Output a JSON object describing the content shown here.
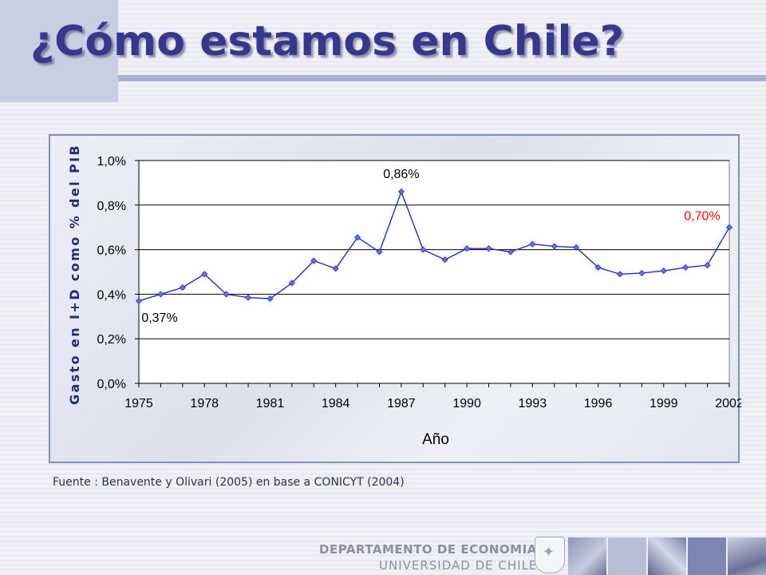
{
  "slide": {
    "title": "¿Cómo estamos en Chile?",
    "source": "Fuente : Benavente y Olivari (2005) en base a CONICYT (2004)"
  },
  "footer": {
    "department": "DEPARTAMENTO DE ECONOMIA",
    "university": "UNIVERSIDAD DE CHILE"
  },
  "colors": {
    "title": "#36378f",
    "line": "#1d2cc8",
    "marker": "#5a78ff",
    "highlight_label": "#ff0000",
    "axis_title": "#1f2a80"
  },
  "chart_data": {
    "type": "line",
    "title": "",
    "xlabel": "Año",
    "ylabel": "Gasto en I+D como % del PIB",
    "x": [
      1975,
      1976,
      1977,
      1978,
      1979,
      1980,
      1981,
      1982,
      1983,
      1984,
      1985,
      1986,
      1987,
      1988,
      1989,
      1990,
      1991,
      1992,
      1993,
      1994,
      1995,
      1996,
      1997,
      1998,
      1999,
      2000,
      2001,
      2002
    ],
    "series": [
      {
        "values": [
          0.37,
          0.4,
          0.43,
          0.49,
          0.4,
          0.385,
          0.38,
          0.45,
          0.55,
          0.515,
          0.655,
          0.59,
          0.86,
          0.6,
          0.555,
          0.605,
          0.605,
          0.59,
          0.625,
          0.615,
          0.61,
          0.52,
          0.49,
          0.495,
          0.505,
          0.52,
          0.53,
          0.7
        ]
      }
    ],
    "xlim": [
      1975,
      2002
    ],
    "ylim": [
      0,
      1.0
    ],
    "x_ticks": [
      "1975",
      "1978",
      "1981",
      "1984",
      "1987",
      "1990",
      "1993",
      "1996",
      "1999",
      "2002"
    ],
    "y_ticks": [
      "0,0%",
      "0,2%",
      "0,4%",
      "0,6%",
      "0,8%",
      "1,0%"
    ],
    "annotations": [
      {
        "text": "0,37%",
        "x": 1975,
        "y": 0.37,
        "color": "#000000"
      },
      {
        "text": "0,86%",
        "x": 1987,
        "y": 0.86,
        "color": "#000000"
      },
      {
        "text": "0,70%",
        "x": 2002,
        "y": 0.7,
        "color": "#ff0000"
      }
    ],
    "grid": "horizontal",
    "legend": "none"
  }
}
